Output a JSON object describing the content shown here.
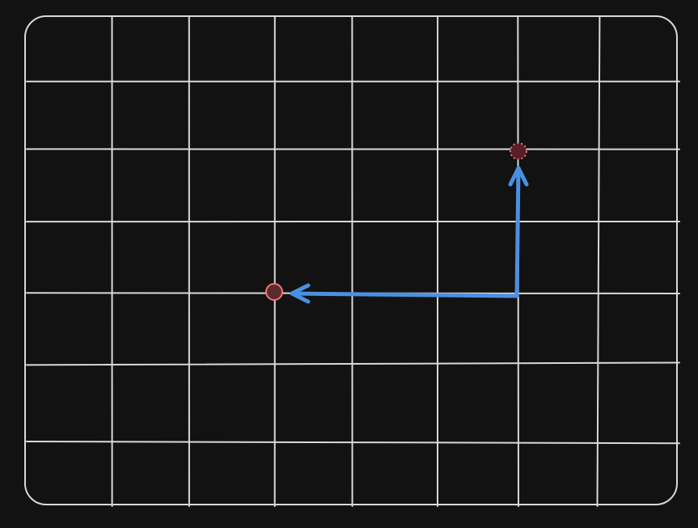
{
  "canvas": {
    "background": "#121212",
    "grid_color": "#d9d9d9",
    "grid_columns": 8,
    "grid_rows": 7,
    "frame_style": "hand-drawn rounded rectangle"
  },
  "points": [
    {
      "id": "start",
      "col": 6,
      "row": 2,
      "fill": "#5a1f24",
      "stroke": "#e07777",
      "stroke_style": "dotted"
    },
    {
      "id": "end",
      "col": 3,
      "row": 4,
      "fill": "#5c2a2c",
      "stroke": "#ef7676",
      "stroke_style": "solid"
    }
  ],
  "path": {
    "color": "#4a90e2",
    "segments": [
      {
        "from": {
          "col": 6,
          "row": 4
        },
        "to": {
          "col": 6,
          "row": 2
        },
        "arrowhead": "end"
      },
      {
        "from": {
          "col": 6,
          "row": 4
        },
        "to": {
          "col": 3,
          "row": 4
        },
        "arrowhead": "end"
      }
    ]
  }
}
